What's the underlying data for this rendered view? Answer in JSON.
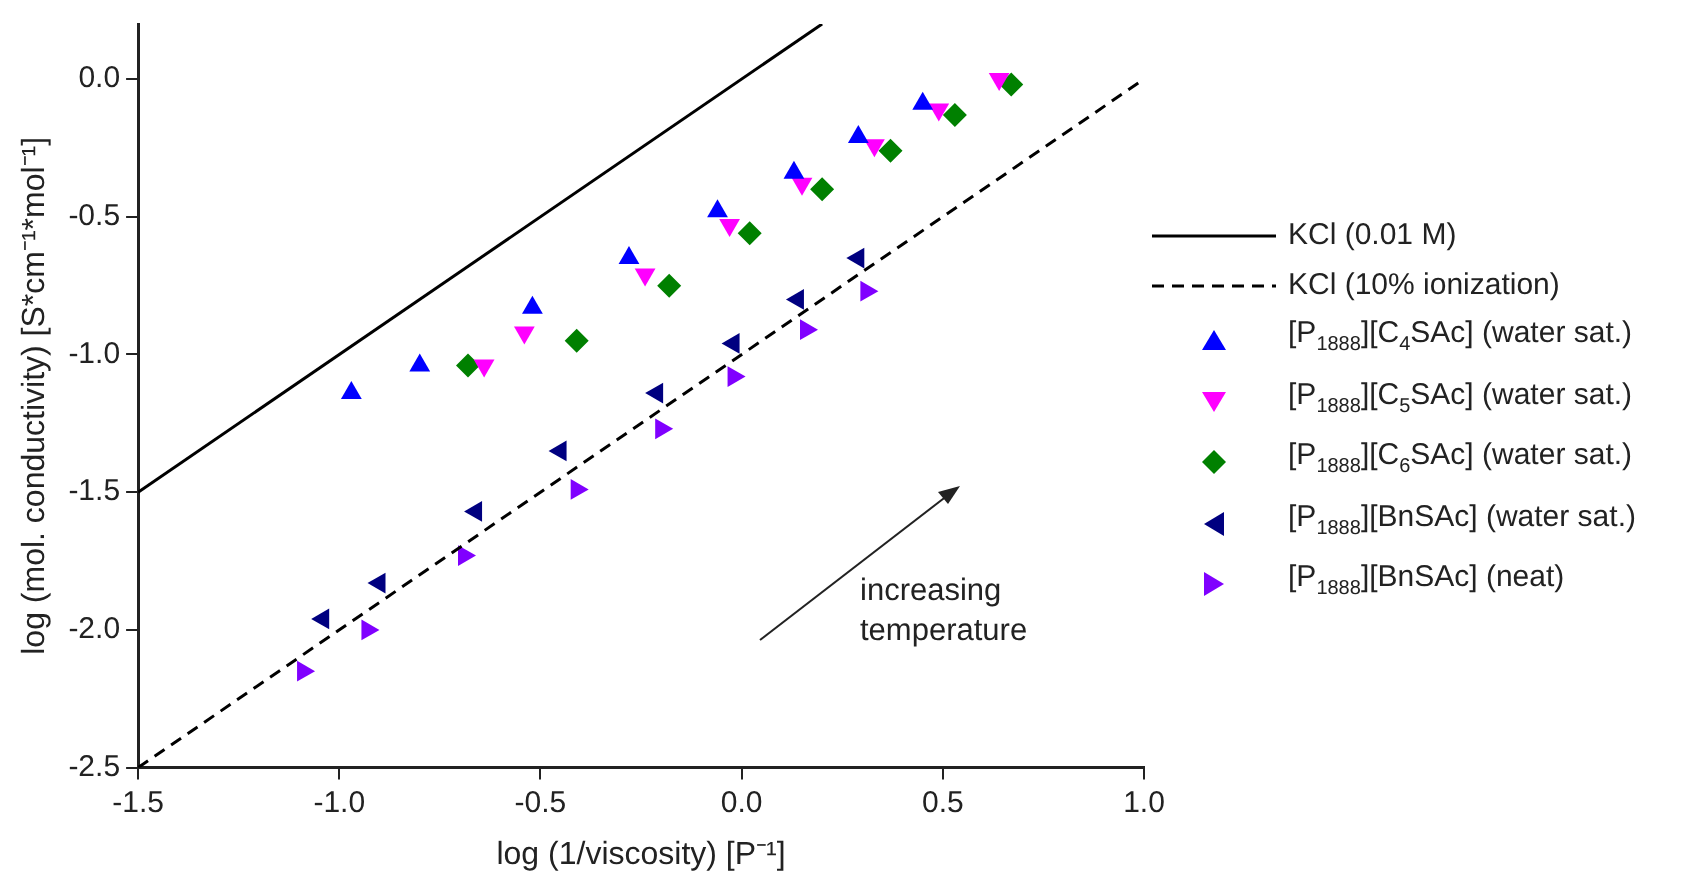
{
  "chart_data": {
    "type": "scatter",
    "xlabel": "log (1/viscosity) [P⁻¹]",
    "ylabel": "log (mol. conductivity) [S*cm⁻¹*mol⁻¹]",
    "xlim": [
      -1.5,
      1.0
    ],
    "xticks": [
      -1.5,
      {
        "value": -1.0,
        "label": "-1.0"
      },
      -0.5,
      {
        "value": 0.0,
        "label": "0.0"
      },
      0.5,
      {
        "value": 1.0,
        "label": "1.0"
      }
    ],
    "ylim": [
      -2.5,
      0.2
    ],
    "yticks": [
      -2.5,
      {
        "value": -2.0,
        "label": "-2.0"
      },
      -1.5,
      {
        "value": -1.0,
        "label": "-1.0"
      },
      -0.5,
      {
        "value": 0.0,
        "label": "0.0"
      }
    ],
    "grid": false,
    "legend": "right",
    "annotations": [
      "increasing temperature"
    ],
    "series": [
      {
        "name": "KCl (0.01 M)",
        "type": "line",
        "color": "#000000",
        "line_style": "solid",
        "marker": "none",
        "x": [
          -1.5,
          0.2
        ],
        "values": [
          -1.5,
          0.2
        ]
      },
      {
        "name": "KCl (10% ionization)",
        "type": "line",
        "color": "#000000",
        "line_style": "dashed",
        "marker": "none",
        "x": [
          -1.5,
          1.0
        ],
        "values": [
          -2.5,
          0.0
        ]
      },
      {
        "name": "[P$_{1888}$][C$_{4}$SAc] (water sat.)",
        "color": "#0000ff",
        "marker": "triangle",
        "x": [
          -0.97,
          -0.8,
          -0.52,
          -0.28,
          -0.06,
          0.13,
          0.29,
          0.45
        ],
        "values": [
          -1.14,
          -1.04,
          -0.83,
          -0.65,
          -0.48,
          -0.34,
          -0.21,
          -0.09
        ]
      },
      {
        "name": "[P$_{1888}$][C$_{5}$SAc] (water sat.)",
        "color": "#ff00ff",
        "marker": "triangle-down",
        "x": [
          -0.64,
          -0.54,
          -0.24,
          -0.03,
          0.15,
          0.33,
          0.49,
          0.64
        ],
        "values": [
          -1.04,
          -0.92,
          -0.71,
          -0.53,
          -0.38,
          -0.24,
          -0.11,
          0.0
        ]
      },
      {
        "name": "[P$_{1888}$][C$_{6}$SAc] (water sat.)",
        "color": "#008000",
        "marker": "diamond",
        "x": [
          -0.68,
          -0.41,
          -0.18,
          0.02,
          0.2,
          0.37,
          0.53,
          0.67
        ],
        "values": [
          -1.04,
          -0.95,
          -0.75,
          -0.56,
          -0.4,
          -0.26,
          -0.13,
          -0.02
        ]
      },
      {
        "name": "[P$_{1888}$][BnSAc] (water sat.)",
        "color": "#000080",
        "marker": "triangle-left",
        "x": [
          -1.04,
          -0.9,
          -0.66,
          -0.45,
          -0.21,
          -0.02,
          0.14,
          0.29
        ],
        "values": [
          -1.96,
          -1.83,
          -1.57,
          -1.35,
          -1.14,
          -0.96,
          -0.8,
          -0.65
        ]
      },
      {
        "name": "[P$_{1888}$][BnSAc] (neat)",
        "color": "#8000ff",
        "marker": "triangle-right",
        "x": [
          -1.09,
          -0.93,
          -0.69,
          -0.41,
          -0.2,
          -0.02,
          0.16,
          0.31
        ],
        "values": [
          -2.15,
          -2.0,
          -1.73,
          -1.49,
          -1.27,
          -1.08,
          -0.91,
          -0.77
        ]
      }
    ]
  }
}
